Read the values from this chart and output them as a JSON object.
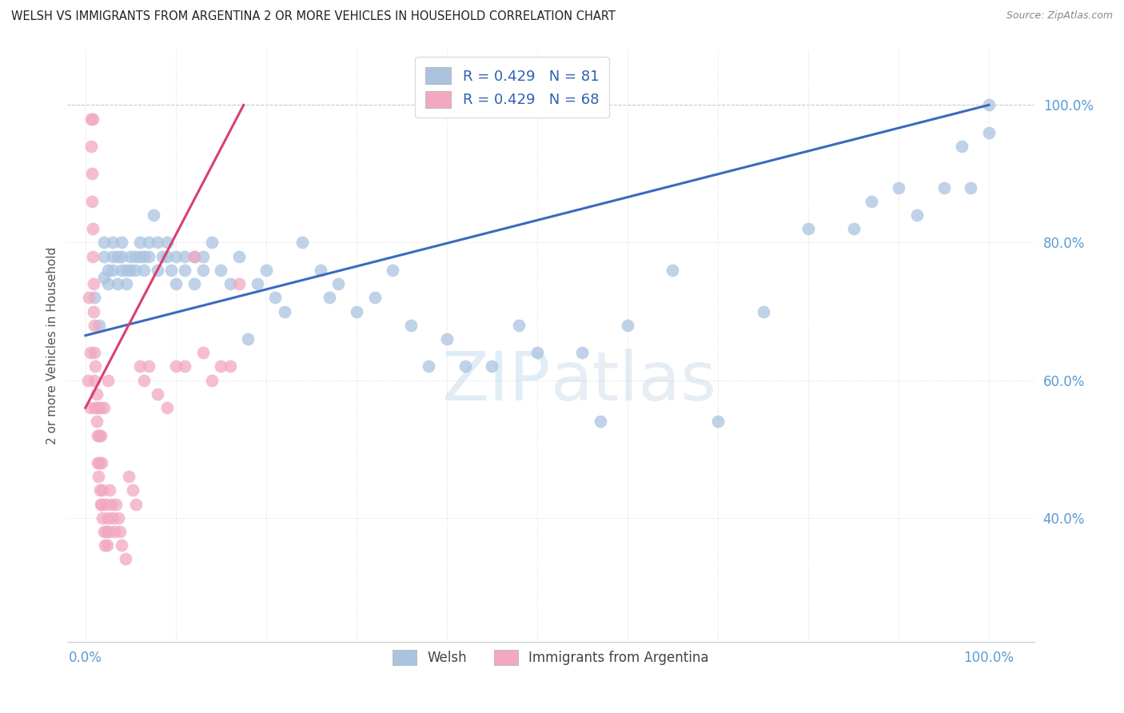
{
  "title": "WELSH VS IMMIGRANTS FROM ARGENTINA 2 OR MORE VEHICLES IN HOUSEHOLD CORRELATION CHART",
  "source": "Source: ZipAtlas.com",
  "ylabel": "2 or more Vehicles in Household",
  "welsh_color": "#aac4e0",
  "argentina_color": "#f2a8bf",
  "welsh_line_color": "#3b6abf",
  "argentina_line_color": "#d94070",
  "welsh_R": 0.429,
  "welsh_N": 81,
  "argentina_R": 0.429,
  "argentina_N": 68,
  "legend_label_welsh": "Welsh",
  "legend_label_argentina": "Immigrants from Argentina",
  "watermark_zip": "ZIP",
  "watermark_atlas": "atlas",
  "background_color": "#ffffff",
  "title_color": "#222222",
  "source_color": "#888888",
  "ylabel_color": "#555555",
  "tick_color": "#5b9bd5",
  "grid_color": "#dddddd",
  "welsh_x": [
    0.01,
    0.015,
    0.02,
    0.02,
    0.02,
    0.025,
    0.025,
    0.03,
    0.03,
    0.03,
    0.035,
    0.035,
    0.04,
    0.04,
    0.04,
    0.045,
    0.045,
    0.05,
    0.05,
    0.055,
    0.055,
    0.06,
    0.06,
    0.065,
    0.065,
    0.07,
    0.07,
    0.075,
    0.08,
    0.08,
    0.085,
    0.09,
    0.09,
    0.095,
    0.1,
    0.1,
    0.11,
    0.11,
    0.12,
    0.12,
    0.13,
    0.13,
    0.14,
    0.15,
    0.16,
    0.17,
    0.18,
    0.19,
    0.2,
    0.21,
    0.22,
    0.24,
    0.26,
    0.27,
    0.28,
    0.3,
    0.32,
    0.34,
    0.36,
    0.38,
    0.4,
    0.42,
    0.45,
    0.48,
    0.5,
    0.55,
    0.57,
    0.6,
    0.65,
    0.7,
    0.75,
    0.8,
    0.85,
    0.87,
    0.9,
    0.92,
    0.95,
    0.97,
    0.98,
    1.0,
    1.0
  ],
  "welsh_y": [
    0.72,
    0.68,
    0.8,
    0.75,
    0.78,
    0.74,
    0.76,
    0.78,
    0.8,
    0.76,
    0.74,
    0.78,
    0.76,
    0.78,
    0.8,
    0.76,
    0.74,
    0.78,
    0.76,
    0.76,
    0.78,
    0.78,
    0.8,
    0.76,
    0.78,
    0.78,
    0.8,
    0.84,
    0.76,
    0.8,
    0.78,
    0.78,
    0.8,
    0.76,
    0.74,
    0.78,
    0.78,
    0.76,
    0.74,
    0.78,
    0.76,
    0.78,
    0.8,
    0.76,
    0.74,
    0.78,
    0.66,
    0.74,
    0.76,
    0.72,
    0.7,
    0.8,
    0.76,
    0.72,
    0.74,
    0.7,
    0.72,
    0.76,
    0.68,
    0.62,
    0.66,
    0.62,
    0.62,
    0.68,
    0.64,
    0.64,
    0.54,
    0.68,
    0.76,
    0.54,
    0.7,
    0.82,
    0.82,
    0.86,
    0.88,
    0.84,
    0.88,
    0.94,
    0.88,
    0.96,
    1.0
  ],
  "argentina_x": [
    0.003,
    0.004,
    0.005,
    0.005,
    0.006,
    0.006,
    0.007,
    0.007,
    0.008,
    0.008,
    0.008,
    0.009,
    0.009,
    0.01,
    0.01,
    0.01,
    0.011,
    0.011,
    0.012,
    0.012,
    0.013,
    0.013,
    0.014,
    0.014,
    0.015,
    0.015,
    0.016,
    0.016,
    0.017,
    0.017,
    0.018,
    0.018,
    0.019,
    0.019,
    0.02,
    0.02,
    0.021,
    0.022,
    0.023,
    0.024,
    0.025,
    0.025,
    0.026,
    0.027,
    0.028,
    0.03,
    0.032,
    0.034,
    0.036,
    0.038,
    0.04,
    0.044,
    0.048,
    0.052,
    0.056,
    0.06,
    0.065,
    0.07,
    0.08,
    0.09,
    0.1,
    0.11,
    0.12,
    0.13,
    0.14,
    0.15,
    0.16,
    0.17
  ],
  "argentina_y": [
    0.6,
    0.72,
    0.56,
    0.64,
    0.98,
    0.94,
    0.9,
    0.86,
    0.82,
    0.78,
    0.98,
    0.74,
    0.7,
    0.68,
    0.64,
    0.6,
    0.56,
    0.62,
    0.58,
    0.54,
    0.52,
    0.48,
    0.46,
    0.56,
    0.52,
    0.48,
    0.44,
    0.56,
    0.42,
    0.52,
    0.42,
    0.48,
    0.4,
    0.44,
    0.38,
    0.56,
    0.36,
    0.42,
    0.38,
    0.36,
    0.6,
    0.4,
    0.38,
    0.44,
    0.42,
    0.4,
    0.38,
    0.42,
    0.4,
    0.38,
    0.36,
    0.34,
    0.46,
    0.44,
    0.42,
    0.62,
    0.6,
    0.62,
    0.58,
    0.56,
    0.62,
    0.62,
    0.78,
    0.64,
    0.6,
    0.62,
    0.62,
    0.74
  ],
  "welsh_trend_x": [
    0.0,
    1.0
  ],
  "welsh_trend_y": [
    0.665,
    1.0
  ],
  "arg_trend_x": [
    0.0,
    0.175
  ],
  "arg_trend_y": [
    0.56,
    1.0
  ],
  "xlim": [
    -0.02,
    1.05
  ],
  "ylim": [
    0.22,
    1.08
  ],
  "xtick_pos": [
    0.0,
    0.1,
    0.2,
    0.3,
    0.4,
    0.5,
    0.6,
    0.7,
    0.8,
    0.9,
    1.0
  ],
  "ytick_pos": [
    0.4,
    0.6,
    0.8,
    1.0
  ],
  "xtick_labels_show": {
    "0.0": "0.0%",
    "1.0": "100.0%"
  },
  "ytick_labels_show": {
    "0.4": "40.0%",
    "0.6": "60.0%",
    "0.8": "80.0%",
    "1.0": "100.0%"
  }
}
